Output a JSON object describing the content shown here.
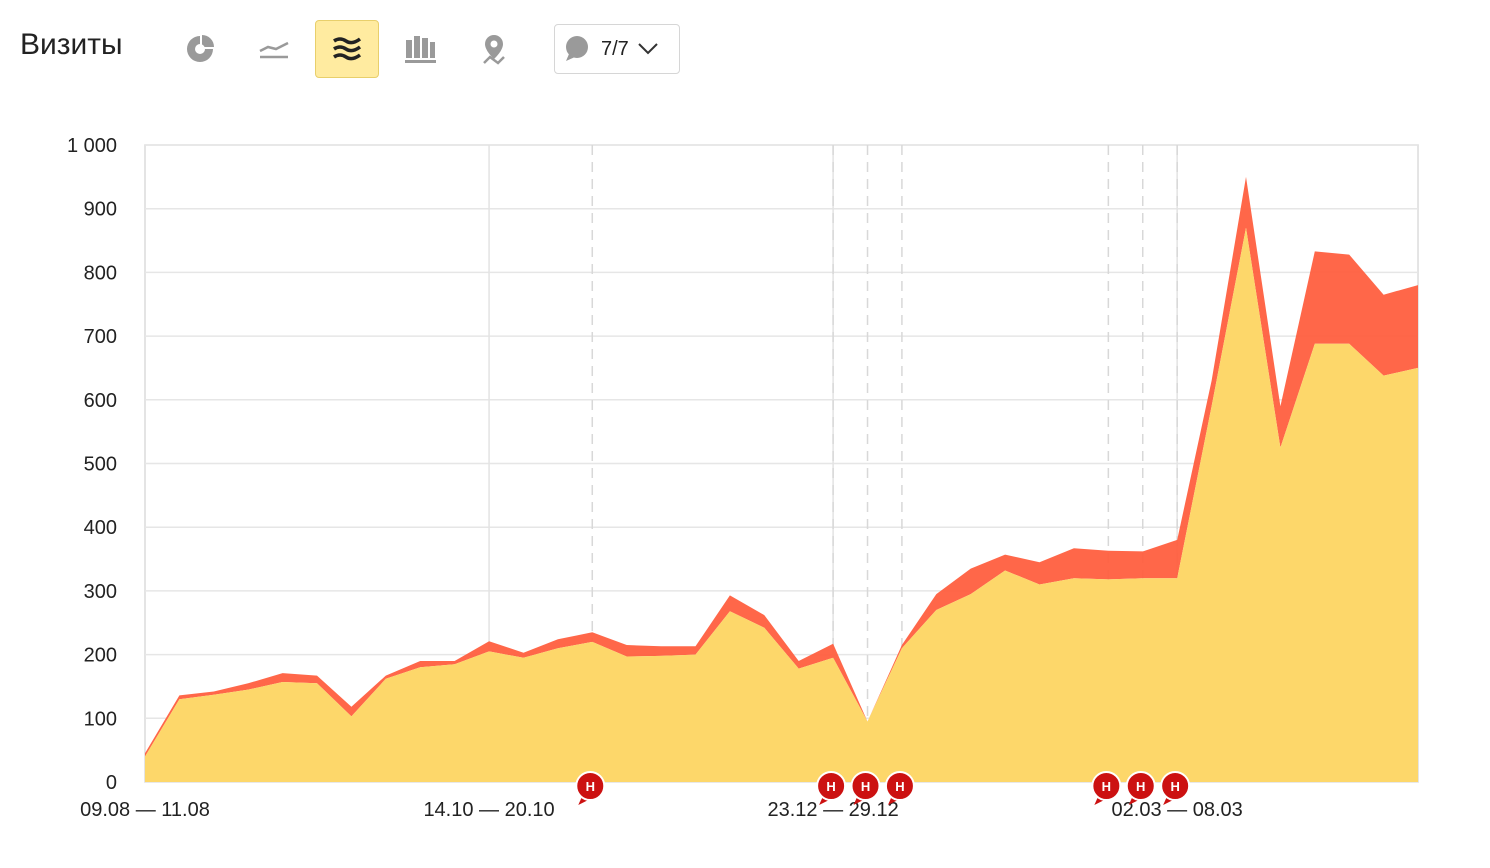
{
  "header": {
    "title": "Визиты",
    "tools": [
      {
        "name": "pie-chart-icon",
        "active": false
      },
      {
        "name": "line-chart-icon",
        "active": false
      },
      {
        "name": "area-chart-icon",
        "active": true
      },
      {
        "name": "bar-chart-icon",
        "active": false
      },
      {
        "name": "map-icon",
        "active": false
      }
    ],
    "notes_count": "7/7"
  },
  "chart_data": {
    "type": "area",
    "stacked": true,
    "ylim": [
      0,
      1000
    ],
    "y_ticks": [
      "0",
      "100",
      "200",
      "300",
      "400",
      "500",
      "600",
      "700",
      "800",
      "900",
      "1 000"
    ],
    "x_tick_labels": [
      {
        "index": 0,
        "label": "09.08 — 11.08"
      },
      {
        "index": 10,
        "label": "14.10 — 20.10"
      },
      {
        "index": 20,
        "label": "23.12 — 29.12"
      },
      {
        "index": 30,
        "label": "02.03 — 08.03"
      }
    ],
    "grid": true,
    "colors": {
      "base": "#fdd76a",
      "top": "#ff5f3f",
      "marker": "#cc1111"
    },
    "series": [
      {
        "values": [
          40,
          130,
          137,
          145,
          157,
          155,
          103,
          162,
          180,
          185,
          205,
          195,
          210,
          220,
          197,
          198,
          200,
          268,
          242,
          178,
          195,
          95,
          210,
          270,
          295,
          332,
          310,
          320,
          318,
          320,
          320,
          590,
          870,
          525,
          688,
          688,
          638,
          650
        ]
      },
      {
        "values": [
          5,
          6,
          5,
          10,
          14,
          12,
          15,
          5,
          10,
          5,
          16,
          8,
          14,
          15,
          18,
          15,
          13,
          25,
          20,
          12,
          22,
          0,
          5,
          25,
          40,
          25,
          35,
          47,
          45,
          42,
          60,
          40,
          80,
          65,
          145,
          140,
          127,
          130
        ]
      }
    ],
    "annotations": [
      {
        "label": "Н",
        "index": 13
      },
      {
        "label": "Н",
        "index": 20
      },
      {
        "label": "Н",
        "index": 21
      },
      {
        "label": "Н",
        "index": 22
      },
      {
        "label": "Н",
        "index": 28
      },
      {
        "label": "Н",
        "index": 29
      },
      {
        "label": "Н",
        "index": 30
      }
    ]
  }
}
